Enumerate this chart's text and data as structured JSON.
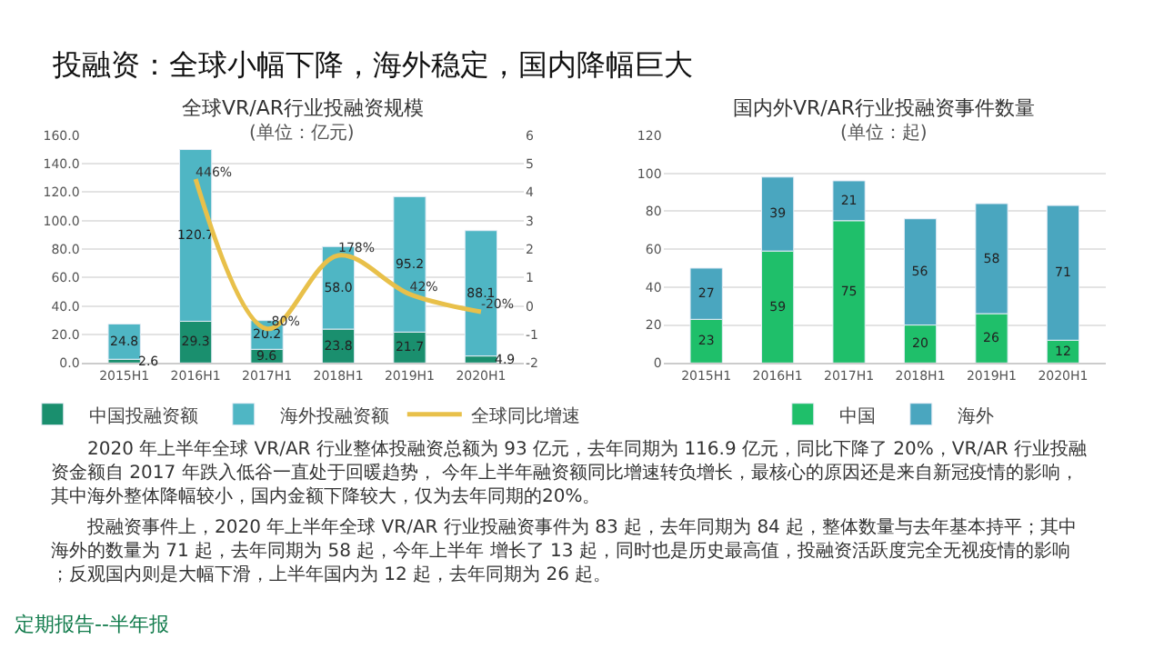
{
  "chart_data": [
    {
      "type": "bar",
      "stacked": true,
      "title": "全球VR/AR行业投融资规模",
      "subtitle": "(单位：亿元)",
      "categories": [
        "2015H1",
        "2016H1",
        "2017H1",
        "2018H1",
        "2019H1",
        "2020H1"
      ],
      "series": [
        {
          "name": "中国投融资额",
          "color": "#1a8f6e",
          "values": [
            2.6,
            29.3,
            9.6,
            23.8,
            21.7,
            4.9
          ],
          "value_labels": [
            "2.6",
            "29.3",
            "9.6",
            "23.8",
            "21.7",
            "4.9"
          ]
        },
        {
          "name": "海外投融资额",
          "color": "#4fb6c4",
          "values": [
            24.8,
            120.7,
            20.2,
            58.0,
            95.2,
            88.1
          ],
          "value_labels": [
            "24.8",
            "120.7",
            "20.2",
            "58.0",
            "95.2",
            "88.1"
          ]
        },
        {
          "name": "全球同比增速",
          "type": "line",
          "axis": "y2",
          "color": "#e8c04a",
          "values": [
            null,
            4.46,
            -0.8,
            1.78,
            0.42,
            -0.2
          ],
          "value_labels": [
            null,
            "446%",
            "-80%",
            "178%",
            "42%",
            "-20%"
          ]
        }
      ],
      "ylim": [
        0,
        160
      ],
      "yticks": [
        {
          "value": 0,
          "label": "0.0"
        },
        {
          "value": 20,
          "label": "20.0"
        },
        {
          "value": 40,
          "label": "40.0"
        },
        {
          "value": 60,
          "label": "60.0"
        },
        {
          "value": 80,
          "label": "80.0"
        },
        {
          "value": 100,
          "label": "100.0"
        },
        {
          "value": 120,
          "label": "120.0"
        },
        {
          "value": 140,
          "label": "140.0"
        },
        {
          "value": 160,
          "label": "160.0"
        }
      ],
      "y2lim": [
        -2,
        6
      ],
      "y2ticks": [
        -2,
        -1,
        0,
        1,
        2,
        3,
        4,
        5,
        6
      ],
      "grid": "y",
      "legend": "bottom",
      "annotations": [
        "投融资：全球小幅下降，海外稳定，国内降幅巨大",
        "2020 年上半年全球 VR/AR 行业整体投融资总额为 93 亿元，去年同期为 116.9 亿元，同比下降了 20%，VR/AR 行业投融资金额自 2017 年跌入低谷一直处于回暖趋势， 今年上半年融资额同比增速转负增长，最核心的原因还是来自新冠疫情的影响，其中海外整体降幅较小，国内金额下降较大，仅为去年同期的20%。",
        "投融资事件上，2020 年上半年全球 VR/AR 行业投融资事件为 83 起，去年同期为 84 起，整体数量与去年基本持平；其中海外的数量为 71 起，去年同期为 58 起，今年上半年 增长了 13 起，同时也是历史最高值，投融资活跃度完全无视疫情的影响；反观国内则是大幅下滑，上半年国内为 12 起，去年同期为 26 起。",
        "定期报告--半年报"
      ]
    },
    {
      "type": "bar",
      "stacked": true,
      "title": "国内外VR/AR行业投融资事件数量",
      "subtitle": "(单位：起)",
      "categories": [
        "2015H1",
        "2016H1",
        "2017H1",
        "2018H1",
        "2019H1",
        "2020H1"
      ],
      "series": [
        {
          "name": "中国",
          "color": "#1fbf6a",
          "values": [
            23,
            59,
            75,
            20,
            26,
            12
          ],
          "value_labels": [
            "23",
            "59",
            "75",
            "20",
            "26",
            "12"
          ]
        },
        {
          "name": "海外",
          "color": "#4aa6bf",
          "values": [
            27,
            39,
            21,
            56,
            58,
            71
          ],
          "value_labels": [
            "27",
            "39",
            "21",
            "56",
            "58",
            "71"
          ]
        }
      ],
      "ylim": [
        0,
        120
      ],
      "yticks": [
        0,
        20,
        40,
        60,
        80,
        100,
        120
      ],
      "grid": "y",
      "legend": "bottom"
    }
  ]
}
